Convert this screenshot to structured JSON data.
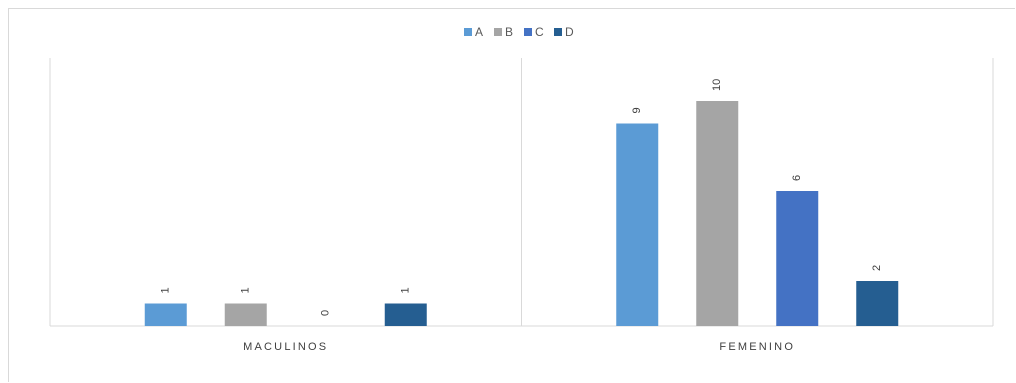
{
  "chart_data": {
    "type": "bar",
    "categories": [
      "MACULINOS",
      "FEMENINO"
    ],
    "series": [
      {
        "name": "A",
        "values": [
          1,
          9
        ],
        "color": "#5b9bd5"
      },
      {
        "name": "B",
        "values": [
          1,
          10
        ],
        "color": "#a5a5a5"
      },
      {
        "name": "C",
        "values": [
          0,
          6
        ],
        "color": "#4472c4"
      },
      {
        "name": "D",
        "values": [
          1,
          2
        ],
        "color": "#255e91"
      }
    ],
    "ylim": [
      0,
      10
    ],
    "legend_position": "top",
    "grid": false,
    "data_labels": true,
    "data_label_orientation": "rotated"
  }
}
